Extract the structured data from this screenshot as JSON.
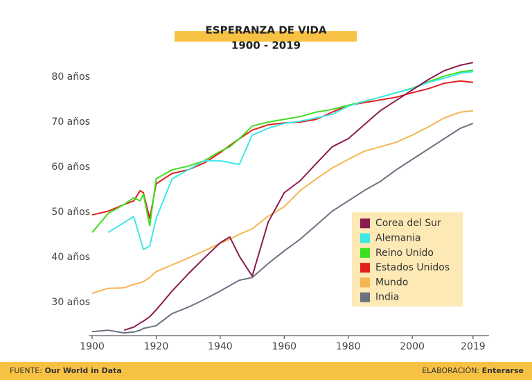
{
  "chart_data": {
    "type": "line",
    "title": "ESPERANZA DE VIDA",
    "subtitle": "1900 - 2019",
    "x": [
      1900,
      1905,
      1910,
      1913,
      1915,
      1916,
      1918,
      1920,
      1925,
      1930,
      1935,
      1940,
      1943,
      1946,
      1950,
      1955,
      1960,
      1965,
      1970,
      1975,
      1980,
      1985,
      1990,
      1995,
      2000,
      2005,
      2010,
      2015,
      2019
    ],
    "series": [
      {
        "name": "Corea del Sur",
        "color": "#8b1a4f",
        "values": [
          null,
          null,
          23.8,
          24.5,
          25.4,
          25.8,
          26.8,
          28.3,
          32.5,
          36.3,
          39.8,
          43.2,
          44.5,
          40.2,
          35.8,
          47.8,
          54.3,
          57,
          60.8,
          64.5,
          66.3,
          69.4,
          72.5,
          74.8,
          77.1,
          79.4,
          81.4,
          82.6,
          83.2
        ]
      },
      {
        "name": "Alemania",
        "color": "#3ee8e8",
        "values": [
          null,
          45.5,
          47.7,
          49,
          44.2,
          41.7,
          42.5,
          48.6,
          57.4,
          59.4,
          61.4,
          61.4,
          61,
          60.6,
          67.1,
          68.6,
          69.7,
          70.2,
          70.9,
          71.7,
          73.5,
          74.6,
          75.5,
          76.5,
          77.4,
          78.8,
          79.7,
          80.8,
          81.2
        ]
      },
      {
        "name": "Reino Unido",
        "color": "#3dde1e",
        "values": [
          45.5,
          49.7,
          51.7,
          53.2,
          52.5,
          54,
          47,
          57.4,
          59.4,
          60.2,
          61.4,
          63.5,
          64.5,
          66.3,
          69.1,
          70,
          70.6,
          71.2,
          72.2,
          72.8,
          73.7,
          74.6,
          75.5,
          76.5,
          77.5,
          78.9,
          80.2,
          81.1,
          81.5
        ]
      },
      {
        "name": "Estados Unidos",
        "color": "#e32020",
        "values": [
          49.4,
          50.2,
          51.7,
          52.5,
          54.8,
          54.3,
          48.6,
          56.3,
          58.6,
          59.4,
          60.9,
          63.2,
          64.8,
          66.3,
          68.2,
          69.4,
          69.8,
          70,
          70.6,
          72.2,
          73.7,
          74.3,
          74.9,
          75.5,
          76.5,
          77.4,
          78.6,
          79.1,
          78.8
        ]
      },
      {
        "name": "Mundo",
        "color": "#f5b553",
        "values": [
          32,
          33.1,
          33.2,
          34,
          34.3,
          34.6,
          35.5,
          36.8,
          38.3,
          39.8,
          41.4,
          43.1,
          44,
          45.1,
          46.3,
          49.1,
          51.2,
          54.8,
          57.4,
          59.8,
          61.7,
          63.5,
          64.5,
          65.5,
          67.1,
          68.9,
          70.9,
          72.2,
          72.5
        ]
      },
      {
        "name": "India",
        "color": "#6b7280",
        "values": [
          23.5,
          23.8,
          23.2,
          23.4,
          23.8,
          24.2,
          24.5,
          24.8,
          27.5,
          28.9,
          30.6,
          32.5,
          33.7,
          34.9,
          35.5,
          38.6,
          41.4,
          44,
          47.1,
          50.2,
          52.5,
          54.8,
          56.8,
          59.4,
          61.7,
          64,
          66.3,
          68.6,
          69.7
        ]
      }
    ],
    "xlim": [
      1899,
      2024
    ],
    "xticks": [
      1900,
      1920,
      1940,
      1960,
      1980,
      2000,
      2019
    ],
    "ylim": [
      22.6,
      84
    ],
    "yticks": [
      {
        "value": 30,
        "label": "30 años"
      },
      {
        "value": 40,
        "label": "40 años"
      },
      {
        "value": 50,
        "label": "50 años"
      },
      {
        "value": 60,
        "label": "60 años"
      },
      {
        "value": 70,
        "label": "70 años"
      },
      {
        "value": 80,
        "label": "80 años"
      }
    ],
    "grid": false,
    "legend": "lower right",
    "footer": {
      "source_label": "FUENTE:",
      "source": "Our World in Data",
      "credit_label": "ELABORACIÓN:",
      "credit": "Enterarse"
    }
  }
}
